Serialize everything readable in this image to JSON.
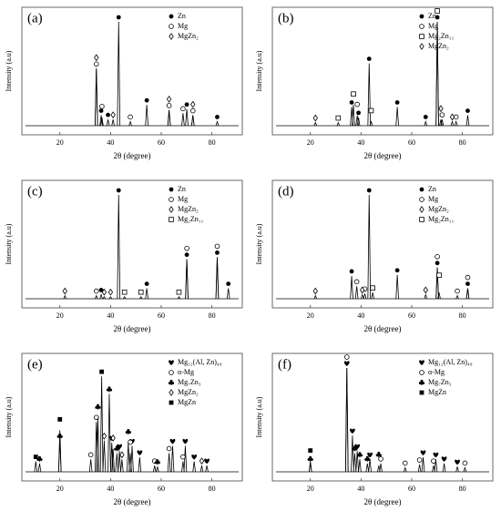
{
  "chart_data": [
    {
      "type": "line",
      "panel": "(a)",
      "xlabel": "2θ (degree)",
      "ylabel": "Intensity (a.u)",
      "xlim": [
        5,
        92
      ],
      "xticks": [
        20,
        40,
        60,
        80
      ],
      "ylim": [
        0,
        100
      ],
      "grid": false,
      "legend": "upper right",
      "series": [
        {
          "name": "Zn",
          "marker": "filled-circle",
          "color": "#000000",
          "x": [
            36.3,
            39.0,
            43.2,
            54.3,
            70.1,
            82.1
          ],
          "values": [
            10,
            6,
            100,
            20,
            16,
            4
          ]
        },
        {
          "name": "Mg",
          "marker": "open-circle",
          "color": "#000000",
          "x": [
            34.4,
            36.6,
            47.8,
            63.1,
            68.6,
            72.5
          ],
          "values": [
            55,
            8,
            4,
            15,
            12,
            10
          ]
        },
        {
          "name": "MgZn₂",
          "marker": "open-diamond",
          "color": "#000000",
          "x": [
            34.4,
            41.0,
            63.1,
            72.5
          ],
          "values": [
            55,
            6,
            15,
            10
          ]
        }
      ]
    },
    {
      "type": "line",
      "panel": "(b)",
      "xlabel": "2θ (degree)",
      "ylabel": "Intensity (a.u)",
      "xlim": [
        5,
        92
      ],
      "xticks": [
        20,
        40,
        60,
        80
      ],
      "ylim": [
        0,
        100
      ],
      "grid": false,
      "legend": "upper right",
      "series": [
        {
          "name": "Zn",
          "marker": "filled-circle",
          "color": "#000000",
          "x": [
            36.3,
            39.0,
            43.2,
            54.3,
            65.5,
            70.1,
            82.1
          ],
          "values": [
            18,
            8,
            60,
            18,
            4,
            100,
            10
          ]
        },
        {
          "name": "Mg",
          "marker": "open-circle",
          "color": "#000000",
          "x": [
            38.5,
            72.0,
            77.5
          ],
          "values": [
            10,
            6,
            4
          ]
        },
        {
          "name": "Mg₂Zn₁₁",
          "marker": "open-square",
          "color": "#000000",
          "x": [
            31.0,
            37.0,
            44.0,
            70.1
          ],
          "values": [
            3,
            20,
            4,
            100
          ]
        },
        {
          "name": "MgZn₂",
          "marker": "open-diamond",
          "color": "#000000",
          "x": [
            22.0,
            71.5,
            76.0
          ],
          "values": [
            3,
            6,
            4
          ]
        }
      ]
    },
    {
      "type": "line",
      "panel": "(c)",
      "xlabel": "2θ (degree)",
      "ylabel": "Intensity (a.u)",
      "xlim": [
        5,
        92
      ],
      "xticks": [
        20,
        40,
        60,
        80
      ],
      "ylim": [
        0,
        100
      ],
      "grid": false,
      "legend": "upper right",
      "series": [
        {
          "name": "Zn",
          "marker": "filled-circle",
          "color": "#000000",
          "x": [
            36.3,
            43.2,
            54.3,
            70.1,
            82.1,
            86.5
          ],
          "values": [
            4,
            100,
            10,
            38,
            40,
            10
          ]
        },
        {
          "name": "Mg",
          "marker": "open-circle",
          "color": "#000000",
          "x": [
            34.4,
            70.1,
            82.1
          ],
          "values": [
            3,
            38,
            40
          ]
        },
        {
          "name": "MgZn₂",
          "marker": "open-diamond",
          "color": "#000000",
          "x": [
            22.0,
            37.5,
            40.0
          ],
          "values": [
            3,
            2,
            2
          ]
        },
        {
          "name": "Mg₂Zn₁₁",
          "marker": "open-square",
          "color": "#000000",
          "x": [
            45.5,
            52.0,
            67.0
          ],
          "values": [
            2,
            2,
            2
          ]
        }
      ]
    },
    {
      "type": "line",
      "panel": "(d)",
      "xlabel": "2θ (degree)",
      "ylabel": "Intensity (a.u)",
      "xlim": [
        5,
        92
      ],
      "xticks": [
        20,
        40,
        60,
        80
      ],
      "ylim": [
        0,
        100
      ],
      "grid": false,
      "legend": "upper right",
      "series": [
        {
          "name": "Zn",
          "marker": "filled-circle",
          "color": "#000000",
          "x": [
            36.3,
            43.2,
            54.3,
            70.1,
            82.1
          ],
          "values": [
            22,
            100,
            23,
            30,
            10
          ]
        },
        {
          "name": "Mg",
          "marker": "open-circle",
          "color": "#000000",
          "x": [
            38.3,
            41.5,
            70.1,
            78.0,
            82.1
          ],
          "values": [
            12,
            5,
            30,
            3,
            10
          ]
        },
        {
          "name": "MgZn₂",
          "marker": "open-diamond",
          "color": "#000000",
          "x": [
            22.0,
            40.5,
            65.5
          ],
          "values": [
            3,
            4,
            4
          ]
        },
        {
          "name": "Mg₂Zn₁₁",
          "marker": "open-square",
          "color": "#000000",
          "x": [
            44.6,
            70.8
          ],
          "values": [
            6,
            6
          ]
        }
      ]
    },
    {
      "type": "line",
      "panel": "(e)",
      "xlabel": "2θ (degree)",
      "ylabel": "Intensity (a.u)",
      "xlim": [
        5,
        92
      ],
      "xticks": [
        20,
        40,
        60,
        80
      ],
      "ylim": [
        0,
        100
      ],
      "grid": false,
      "legend": "upper right",
      "series": [
        {
          "name": "Mg₁₂(Al, Zn)₄₉",
          "marker": "heart",
          "color": "#000000",
          "x": [
            40.5,
            43.5,
            48.5,
            51.5,
            64.5,
            69.5,
            73.0,
            78.0
          ],
          "values": [
            28,
            20,
            25,
            14,
            25,
            25,
            10,
            6
          ]
        },
        {
          "name": "α-Mg",
          "marker": "open-circle",
          "color": "#000000",
          "x": [
            32.2,
            34.4,
            47.8,
            57.4,
            63.1,
            68.6
          ],
          "values": [
            12,
            48,
            18,
            6,
            18,
            10
          ]
        },
        {
          "name": "Mg₇Zn₃",
          "marker": "club",
          "color": "#000000",
          "x": [
            12.0,
            20.0,
            35.0,
            39.5,
            42.5,
            47.0,
            58.5
          ],
          "values": [
            8,
            30,
            52,
            75,
            18,
            28,
            5
          ]
        },
        {
          "name": "MgZn₂",
          "marker": "open-diamond",
          "color": "#000000",
          "x": [
            37.5,
            41.0,
            44.5,
            76.0
          ],
          "values": [
            30,
            22,
            12,
            6
          ]
        },
        {
          "name": "MgZn",
          "marker": "filled-square",
          "color": "#000000",
          "x": [
            10.5,
            20.0,
            36.5
          ],
          "values": [
            10,
            40,
            92
          ]
        }
      ]
    },
    {
      "type": "line",
      "panel": "(f)",
      "xlabel": "2θ (degree)",
      "ylabel": "Intensity (a.u)",
      "xlim": [
        5,
        92
      ],
      "xticks": [
        20,
        40,
        60,
        80
      ],
      "ylim": [
        0,
        100
      ],
      "grid": false,
      "legend": "upper right",
      "series": [
        {
          "name": "Mg₁₂(Al, Zn)₄₉",
          "marker": "heart",
          "color": "#000000",
          "x": [
            34.4,
            36.6,
            38.5,
            43.5,
            64.5,
            69.5,
            72.8,
            78.0
          ],
          "values": [
            100,
            35,
            20,
            12,
            14,
            12,
            8,
            5
          ]
        },
        {
          "name": "α-Mg",
          "marker": "open-circle",
          "color": "#000000",
          "x": [
            34.4,
            47.8,
            57.4,
            63.1,
            68.6,
            81.0
          ],
          "values": [
            100,
            8,
            4,
            7,
            6,
            4
          ]
        },
        {
          "name": "Mg₇Zn₃",
          "marker": "club",
          "color": "#000000",
          "x": [
            20.0,
            37.5,
            39.5,
            42.5,
            47.0
          ],
          "values": [
            8,
            18,
            12,
            8,
            6
          ]
        },
        {
          "name": "MgZn",
          "marker": "filled-square",
          "color": "#000000",
          "x": [
            20.0
          ],
          "values": [
            10
          ]
        }
      ]
    }
  ]
}
